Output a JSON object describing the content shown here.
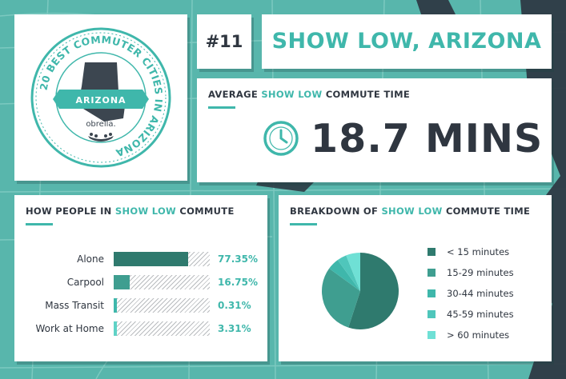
{
  "header": {
    "rank": "#11",
    "city": "SHOW LOW, ARIZONA"
  },
  "badge": {
    "ring_text": "20 BEST COMMUTER CITIES IN ARIZONA",
    "state_label": "ARIZONA",
    "logo_text": "obrella."
  },
  "average": {
    "title_prefix": "AVERAGE",
    "title_city": "SHOW LOW",
    "title_suffix": "COMMUTE TIME",
    "value": "18.7 MINS",
    "icon": "clock-icon"
  },
  "how_people": {
    "title_prefix": "HOW PEOPLE IN",
    "title_city": "SHOW LOW",
    "title_suffix": "COMMUTE",
    "rows": [
      {
        "label": "Alone",
        "value_text": "77.35%",
        "percent": 77.35,
        "color": "#2f7a6e"
      },
      {
        "label": "Carpool",
        "value_text": "16.75%",
        "percent": 16.75,
        "color": "#3f9e90"
      },
      {
        "label": "Mass Transit",
        "value_text": "0.31%",
        "percent": 0.31,
        "color": "#3fb7ab"
      },
      {
        "label": "Work at Home",
        "value_text": "3.31%",
        "percent": 3.31,
        "color": "#5fd2c6"
      }
    ]
  },
  "breakdown": {
    "title_prefix": "BREAKDOWN OF",
    "title_city": "SHOW LOW",
    "title_suffix": "COMMUTE TIME",
    "legend": [
      {
        "label": "< 15 minutes",
        "color": "#2f7a6e"
      },
      {
        "label": "15-29 minutes",
        "color": "#3f9e90"
      },
      {
        "label": "30-44 minutes",
        "color": "#3fb7ab"
      },
      {
        "label": "45-59 minutes",
        "color": "#4fc6bb"
      },
      {
        "label": "> 60 minutes",
        "color": "#6fe0d5"
      }
    ],
    "pie_shares": [
      0.55,
      0.3,
      0.05,
      0.04,
      0.06
    ]
  },
  "colors": {
    "accent": "#3fb7ab",
    "dark_text": "#2f3640",
    "map_bg": "#58b6ac"
  }
}
